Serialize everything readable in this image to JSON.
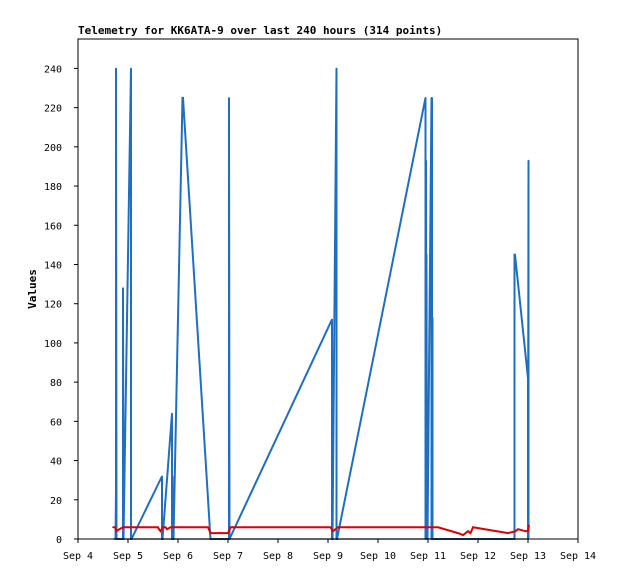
{
  "chart_data": {
    "type": "line",
    "title": "Telemetry for KK6ATA-9 over last 240 hours (314 points)",
    "xlabel": "",
    "ylabel": "Values",
    "x_ticks": [
      "Sep 4",
      "Sep 5",
      "Sep 6",
      "Sep 7",
      "Sep 8",
      "Sep 9",
      "Sep 10",
      "Sep 11",
      "Sep 12",
      "Sep 13",
      "Sep 14"
    ],
    "xlim": [
      4,
      14
    ],
    "ylim": [
      0,
      255
    ],
    "y_ticks": [
      0,
      20,
      40,
      60,
      80,
      100,
      120,
      140,
      160,
      180,
      200,
      220,
      240
    ],
    "grid": false,
    "colors": {
      "series1": "#1f6fc0",
      "series2": "#dd0000",
      "series3": "#000000"
    },
    "series": [
      {
        "color": "#1f6fc0",
        "x": [
          4.75,
          4.76,
          4.76,
          4.77,
          4.77,
          4.9,
          4.9,
          4.91,
          5.06,
          5.06,
          5.07,
          5.68,
          5.68,
          5.69,
          5.69,
          5.88,
          5.88,
          5.89,
          5.89,
          5.9,
          5.9,
          5.91,
          6.09,
          6.09,
          6.1,
          6.65,
          6.65,
          7.02,
          7.02,
          7.03,
          7.03,
          9.08,
          9.08,
          9.09,
          9.17,
          9.17,
          9.18,
          10.95,
          10.95,
          10.96,
          10.97,
          10.97,
          10.98,
          10.98,
          10.99,
          11.07,
          11.07,
          11.08,
          11.08,
          11.09,
          11.09,
          11.1,
          12.73,
          12.73,
          12.74,
          12.74,
          13.0,
          13.0,
          13.01,
          13.01,
          13.02
        ],
        "y": [
          0,
          25,
          240,
          0,
          0,
          0,
          128,
          0,
          240,
          0,
          0,
          32,
          0,
          0,
          0,
          64,
          0,
          32,
          0,
          0,
          0,
          0,
          225,
          225,
          225,
          0,
          0,
          0,
          225,
          0,
          0,
          112,
          0,
          0,
          240,
          0,
          0,
          225,
          0,
          193,
          0,
          145,
          0,
          0,
          0,
          225,
          0,
          225,
          0,
          113,
          0,
          0,
          0,
          145,
          145,
          145,
          82,
          0,
          193,
          0,
          0
        ]
      },
      {
        "color": "#dd0000",
        "x": [
          4.7,
          4.75,
          4.76,
          4.9,
          5.1,
          5.6,
          5.62,
          5.65,
          5.7,
          5.75,
          5.78,
          5.85,
          5.9,
          6.0,
          6.1,
          6.6,
          6.65,
          7.0,
          7.05,
          9.0,
          9.05,
          9.1,
          9.2,
          10.9,
          11.0,
          11.1,
          11.2,
          11.6,
          11.7,
          11.75,
          11.8,
          11.85,
          11.9,
          12.6,
          12.75,
          12.8,
          12.95,
          13.0,
          13.02
        ],
        "y": [
          6,
          6,
          4,
          6,
          6,
          6,
          5,
          4,
          6,
          6,
          5,
          6,
          6,
          6,
          6,
          6,
          3,
          3,
          6,
          6,
          6,
          4,
          6,
          6,
          6,
          6,
          6,
          3,
          2,
          3,
          4,
          3,
          6,
          3,
          4,
          5,
          4,
          4,
          7
        ]
      },
      {
        "color": "#000000",
        "x": [
          4.7,
          13.02
        ],
        "y": [
          0,
          0
        ]
      }
    ]
  }
}
